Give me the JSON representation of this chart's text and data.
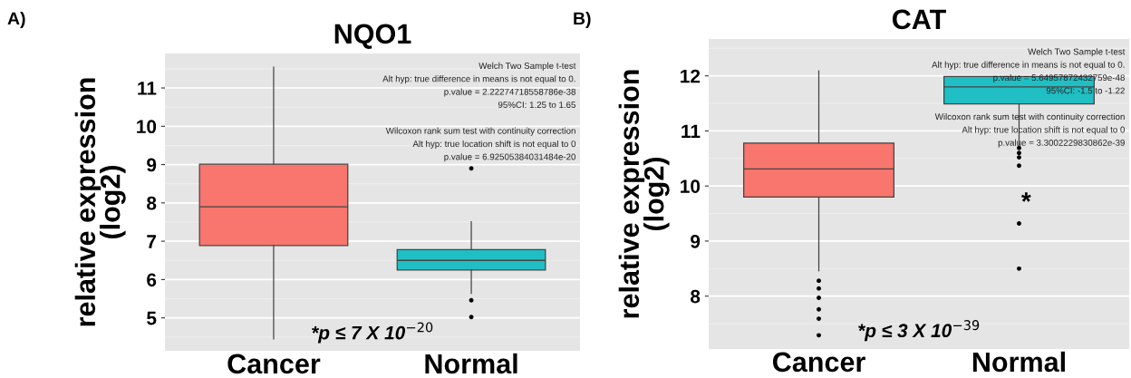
{
  "chart_data": [
    {
      "type": "box",
      "title": "NQO1",
      "ylabel": "relative expression\n(log2)",
      "categories": [
        "Cancer",
        "Normal"
      ],
      "colors": [
        "#f8766d",
        "#1fbfc4"
      ],
      "boxes": [
        {
          "low": 4.45,
          "q1": 6.89,
          "median": 7.9,
          "q3": 9.01,
          "high": 11.54
        },
        {
          "low": 5.64,
          "q1": 6.25,
          "median": 6.5,
          "q3": 6.78,
          "high": 7.51,
          "outliers": [
            5.46,
            5.02,
            8.9
          ]
        }
      ],
      "ylim": [
        4.14,
        11.9
      ],
      "yticks": [
        5,
        6,
        7,
        8,
        9,
        10,
        11
      ],
      "grid": "y",
      "annotations": [
        "A)",
        "Welch Two Sample t-test\nAlt hyp: true difference in means is not equal to 0.\np.value = 2.22274718558786e-38\n95%CI: 1.25 to 1.65\n\nWilcoxon rank sum test with continuity correction\nAlt hyp: true location shift is not equal to 0\np.value = 6.92505384031484e-20",
        "*p ≤ 7 X 10$^{−20}$"
      ]
    },
    {
      "type": "box",
      "title": "CAT",
      "ylabel": "relative expression\n(log2)",
      "categories": [
        "Cancer",
        "Normal"
      ],
      "colors": [
        "#f8766d",
        "#1fbfc4"
      ],
      "boxes": [
        {
          "low": 8.46,
          "q1": 9.8,
          "median": 10.31,
          "q3": 10.78,
          "high": 12.09,
          "outliers": [
            8.28,
            8.14,
            7.97,
            7.76,
            7.59,
            7.29
          ]
        },
        {
          "low": 10.75,
          "q1": 11.49,
          "median": 11.8,
          "q3": 11.99,
          "high": 12.0,
          "outliers": [
            10.69,
            10.6,
            10.52,
            10.37,
            9.32,
            8.5
          ]
        }
      ],
      "ylim": [
        7.04,
        12.67
      ],
      "yticks": [
        8,
        9,
        10,
        11,
        12
      ],
      "grid": "y",
      "annotations": [
        "B)",
        "Welch Two Sample t-test\nAlt hyp: true difference in means is not equal to 0.\np.value = 5.64957872432759e-48\n95%CI: -1.5 to -1.22\n\nWilcoxon rank sum test with continuity correction\nAlt hyp: true location shift is not equal to 0\np.value = 3.3002229830862e-39",
        "*p ≤ 3 X 10$^{−39}$",
        "*"
      ]
    }
  ]
}
